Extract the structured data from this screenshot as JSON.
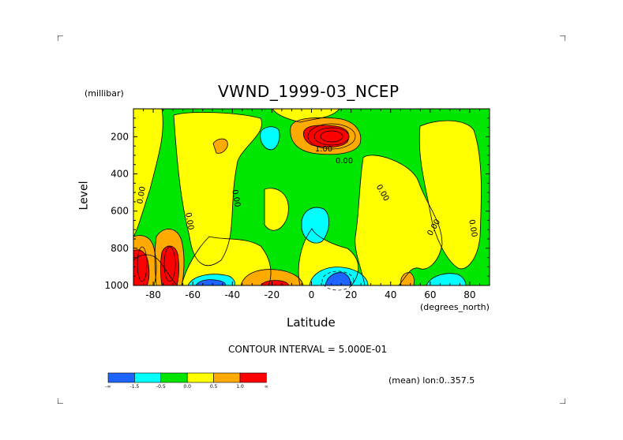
{
  "title": "VWND_1999-03_NCEP",
  "y_unit": "(millibar)",
  "x_unit": "(degrees_north)",
  "contour_text": "CONTOUR INTERVAL = 5.000E-01",
  "mean_text": "(mean) lon:0..357.5",
  "colors": {
    "blue": "#1e64ff",
    "cyan": "#00ffff",
    "green": "#00e600",
    "yellow": "#ffff00",
    "orange": "#ffaa00",
    "red": "#ff0000"
  },
  "colorbar": {
    "colors": [
      "#1e64ff",
      "#00ffff",
      "#00e600",
      "#ffff00",
      "#ffaa00",
      "#ff0000"
    ],
    "labels": [
      "-∞",
      "-1.5",
      "-0.5",
      "0.0",
      "0.5",
      "1.0",
      "∞"
    ]
  },
  "chart_data": {
    "type": "heatmap",
    "title": "VWND_1999-03_NCEP",
    "xlabel": "Latitude",
    "ylabel": "Level",
    "xlim": [
      -90,
      90
    ],
    "ylim": [
      1000,
      50
    ],
    "x_ticks": [
      -80,
      -60,
      -40,
      -20,
      0,
      20,
      40,
      60,
      80
    ],
    "y_ticks": [
      200,
      400,
      600,
      800,
      1000
    ],
    "contour_interval": 0.5,
    "contour_labels": [
      "0.00",
      "0.00",
      "0.00",
      "0.00",
      "0.00",
      "0.00",
      "0.00",
      "1.00"
    ],
    "levels": [
      -1.5,
      -0.5,
      0.0,
      0.5,
      1.0
    ],
    "features": [
      {
        "lat": 12,
        "level": 160,
        "value": 2.0
      },
      {
        "lat": -88,
        "level": 900,
        "value": 2.0
      },
      {
        "lat": -74,
        "level": 880,
        "value": 2.0
      },
      {
        "lat": -20,
        "level": 980,
        "value": 1.2
      },
      {
        "lat": 12,
        "level": 960,
        "value": -1.8
      },
      {
        "lat": -52,
        "level": 980,
        "value": -1.6
      },
      {
        "lat": 5,
        "level": 650,
        "value": -0.6
      },
      {
        "lat": -27,
        "level": 150,
        "value": -0.6
      },
      {
        "lat": 65,
        "level": 970,
        "value": -0.7
      }
    ]
  }
}
